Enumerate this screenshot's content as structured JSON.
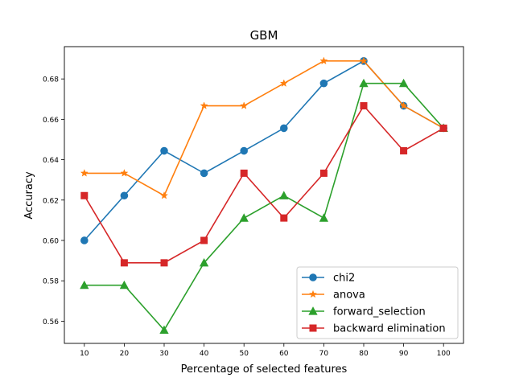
{
  "chart_data": {
    "type": "line",
    "title": "GBM",
    "xlabel": "Percentage of selected features",
    "ylabel": "Accuracy",
    "x": [
      10,
      20,
      30,
      40,
      50,
      60,
      70,
      80,
      90,
      100
    ],
    "xlim": [
      5,
      105
    ],
    "ylim": [
      0.549,
      0.696
    ],
    "yticks": [
      "0.56",
      "0.58",
      "0.60",
      "0.62",
      "0.64",
      "0.66",
      "0.68"
    ],
    "grid": false,
    "legend_position": "lower-right",
    "series": [
      {
        "name": "chi2",
        "color": "#1f77b4",
        "marker": "circle",
        "values": [
          0.6,
          0.6222,
          0.6444,
          0.6333,
          0.6444,
          0.6556,
          0.6778,
          0.6889,
          0.6667,
          0.6556
        ]
      },
      {
        "name": "anova",
        "color": "#ff7f0e",
        "marker": "star",
        "values": [
          0.6333,
          0.6333,
          0.6222,
          0.6667,
          0.6667,
          0.6778,
          0.6889,
          0.6889,
          0.6667,
          0.6556
        ]
      },
      {
        "name": "forward_selection",
        "color": "#2ca02c",
        "marker": "triangle",
        "values": [
          0.5778,
          0.5778,
          0.5556,
          0.5889,
          0.6111,
          0.6222,
          0.6111,
          0.6778,
          0.6778,
          0.6556
        ]
      },
      {
        "name": "backward elimination",
        "color": "#d62728",
        "marker": "square",
        "values": [
          0.6222,
          0.5889,
          0.5889,
          0.6,
          0.6333,
          0.6111,
          0.6333,
          0.6667,
          0.6444,
          0.6556
        ]
      }
    ]
  }
}
